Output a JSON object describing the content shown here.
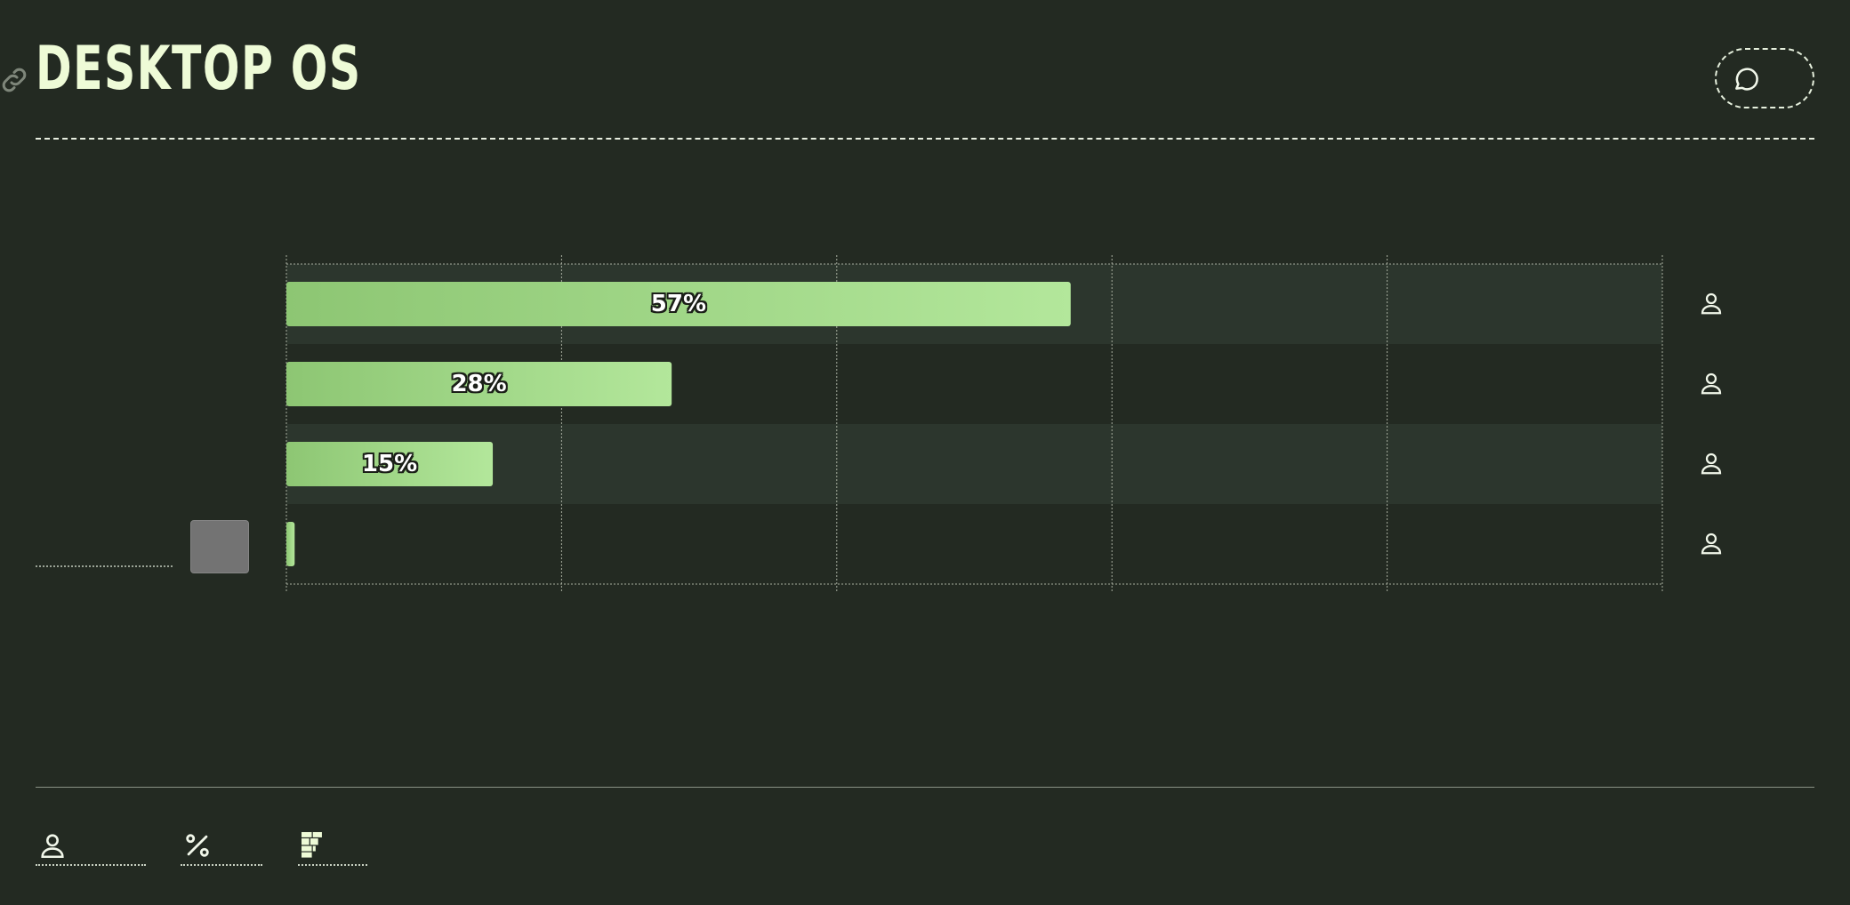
{
  "header": {
    "title": "DESKTOP OS",
    "link_icon": "link-icon",
    "chat_icon": "chat-bubble-icon"
  },
  "colors": {
    "background": "#232a22",
    "bar_start": "#8dc673",
    "bar_end": "#b3e79b",
    "band": "#2c362d",
    "title": "#eefbd7"
  },
  "chart_data": {
    "type": "bar",
    "orientation": "horizontal",
    "categories": [
      "",
      "",
      "",
      ""
    ],
    "values": [
      57,
      28,
      15,
      0.6
    ],
    "labels": [
      "57%",
      "28%",
      "15%",
      ""
    ],
    "xlim": [
      0,
      100
    ],
    "grid": true,
    "row_icon": "user-icon"
  },
  "footer": {
    "controls": [
      {
        "icon": "user-icon"
      },
      {
        "icon": "percent-icon"
      },
      {
        "icon": "treemap-icon"
      }
    ]
  }
}
